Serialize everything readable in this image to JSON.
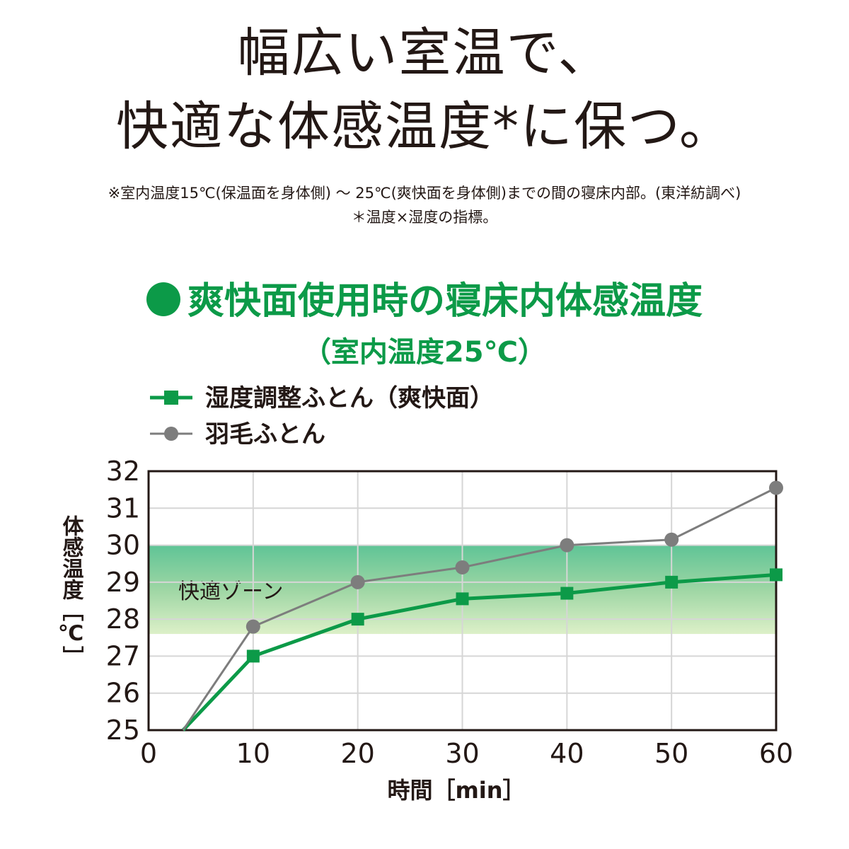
{
  "headline": {
    "line1": "幅広い室温で、",
    "line2": "快適な体感温度*に保つ。"
  },
  "notes": {
    "line1": "※室内温度15℃(保温面を身体側) ～ 25℃(爽快面を身体側)までの間の寝床内部。(東洋紡調べ)",
    "line2": "＊温度×湿度の指標。"
  },
  "chart_data": {
    "type": "line",
    "title": "爽快面使用時の寝床内体感温度",
    "subtitle": "（室内温度25℃）",
    "xlabel": "時間［min］",
    "ylabel": "体感温度［℃］",
    "xlim": [
      0,
      60
    ],
    "ylim": [
      25,
      32
    ],
    "x_ticks": [
      0,
      10,
      20,
      30,
      40,
      50,
      60
    ],
    "y_ticks": [
      25,
      26,
      27,
      28,
      29,
      30,
      31,
      32
    ],
    "grid": true,
    "legend_position": "top-left",
    "comfort_zone": {
      "label": "快適ゾーン",
      "range": [
        27.6,
        30
      ]
    },
    "series": [
      {
        "name": "湿度調整ふとん（爽快面）",
        "marker": "square",
        "color": "#0c9a48",
        "x": [
          3.3,
          10,
          20,
          30,
          40,
          50,
          60
        ],
        "y": [
          25,
          27,
          28,
          28.55,
          28.7,
          29,
          29.2
        ]
      },
      {
        "name": "羽毛ふとん",
        "marker": "circle",
        "color": "#7d7d7d",
        "x": [
          3.3,
          10,
          20,
          30,
          40,
          50,
          60
        ],
        "y": [
          25,
          27.8,
          29,
          29.4,
          30,
          30.15,
          31.55
        ]
      }
    ]
  }
}
